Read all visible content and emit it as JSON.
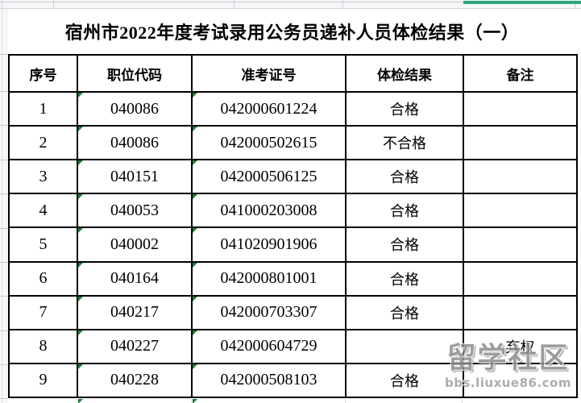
{
  "title": "宿州市2022年度考试录用公务员递补人员体检结果（一）",
  "table": {
    "headers": {
      "seq": "序号",
      "code": "职位代码",
      "ticket": "准考证号",
      "result": "体检结果",
      "note": "备注"
    },
    "rows": [
      {
        "seq": "1",
        "code": "040086",
        "ticket": "042000601224",
        "result": "合格",
        "note": ""
      },
      {
        "seq": "2",
        "code": "040086",
        "ticket": "042000502615",
        "result": "不合格",
        "note": ""
      },
      {
        "seq": "3",
        "code": "040151",
        "ticket": "042000506125",
        "result": "合格",
        "note": ""
      },
      {
        "seq": "4",
        "code": "040053",
        "ticket": "041000203008",
        "result": "合格",
        "note": ""
      },
      {
        "seq": "5",
        "code": "040002",
        "ticket": "041020901906",
        "result": "合格",
        "note": ""
      },
      {
        "seq": "6",
        "code": "040164",
        "ticket": "042000801001",
        "result": "合格",
        "note": ""
      },
      {
        "seq": "7",
        "code": "040217",
        "ticket": "042000703307",
        "result": "合格",
        "note": ""
      },
      {
        "seq": "8",
        "code": "040227",
        "ticket": "042000604729",
        "result": "",
        "note": "弃权"
      },
      {
        "seq": "9",
        "code": "040228",
        "ticket": "042000508103",
        "result": "合格",
        "note": ""
      }
    ]
  },
  "watermark": {
    "text": "留学社区",
    "url": "bbs.liuxue86.com"
  },
  "colors": {
    "selection_bar": "#2ea87b",
    "comment_triangle": "#1e7e34",
    "table_border": "#000000",
    "gridline": "#cfd3d9"
  }
}
